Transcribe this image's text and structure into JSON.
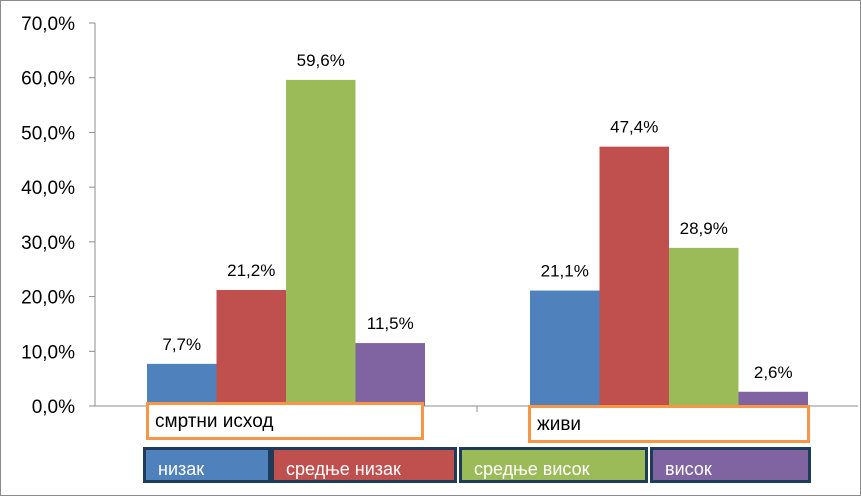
{
  "chart_data": {
    "type": "bar",
    "categories": [
      "смртни исход",
      "живи"
    ],
    "series": [
      {
        "name": "низак",
        "color": "#4f81bd",
        "values": [
          7.7,
          21.1
        ],
        "labels": [
          "7,7%",
          "21,1%"
        ]
      },
      {
        "name": "средње низак",
        "color": "#c0504d",
        "values": [
          21.2,
          47.4
        ],
        "labels": [
          "21,2%",
          "47,4%"
        ]
      },
      {
        "name": "средње висок",
        "color": "#9bbb59",
        "values": [
          59.6,
          28.9
        ],
        "labels": [
          "59,6%",
          "28,9%"
        ]
      },
      {
        "name": "висок",
        "color": "#8064a2",
        "values": [
          11.5,
          2.6
        ],
        "labels": [
          "11,5%",
          "2,6%"
        ]
      }
    ],
    "yticks": [
      "0,0%",
      "10,0%",
      "20,0%",
      "30,0%",
      "40,0%",
      "50,0%",
      "60,0%",
      "70,0%"
    ],
    "ylim": [
      0,
      70
    ],
    "grid": false,
    "legend_position": "bottom"
  }
}
